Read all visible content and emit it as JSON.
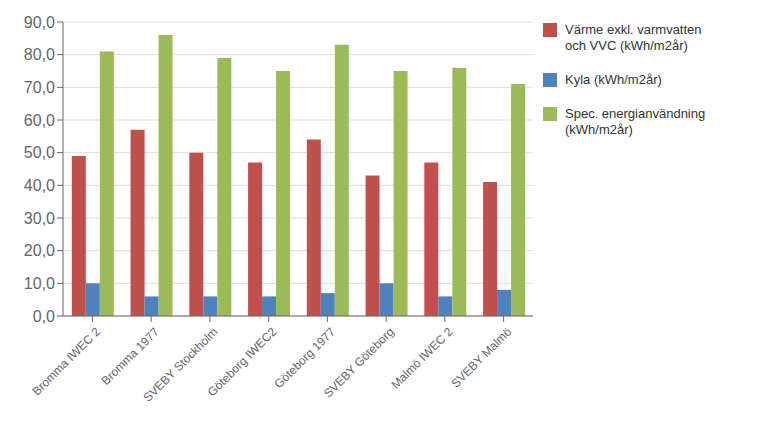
{
  "chart_data": {
    "type": "bar",
    "categories": [
      "Bromma IWEC 2",
      "Bromma 1977",
      "SVEBY Stockholm",
      "Göteborg IWEC2",
      "Göteborg 1977",
      "SVEBY Göteborg",
      "Malmö IWEC 2",
      "SVEBY Malmö"
    ],
    "series": [
      {
        "name": "Värme exkl. varmvatten\noch VVC (kWh/m2år)",
        "color": "#C0504D",
        "values": [
          49,
          57,
          50,
          47,
          54,
          43,
          47,
          41
        ]
      },
      {
        "name": "Kyla (kWh/m2år)",
        "color": "#4F81BD",
        "values": [
          10,
          6,
          6,
          6,
          7,
          10,
          6,
          8
        ]
      },
      {
        "name": "Spec. energianvändning\n(kWh/m2år)",
        "color": "#9BBB59",
        "values": [
          81,
          86,
          79,
          75,
          83,
          75,
          76,
          71
        ]
      }
    ],
    "ylim": [
      0,
      90
    ],
    "yticks": [
      {
        "value": 0,
        "label": "0,0"
      },
      {
        "value": 10,
        "label": "10,0"
      },
      {
        "value": 20,
        "label": "20,0"
      },
      {
        "value": 30,
        "label": "30,0"
      },
      {
        "value": 40,
        "label": "40,0"
      },
      {
        "value": 50,
        "label": "50,0"
      },
      {
        "value": 60,
        "label": "60,0"
      },
      {
        "value": 70,
        "label": "70,0"
      },
      {
        "value": 80,
        "label": "80,0"
      },
      {
        "value": 90,
        "label": "90,0"
      }
    ],
    "grid": true,
    "legend": "right"
  }
}
